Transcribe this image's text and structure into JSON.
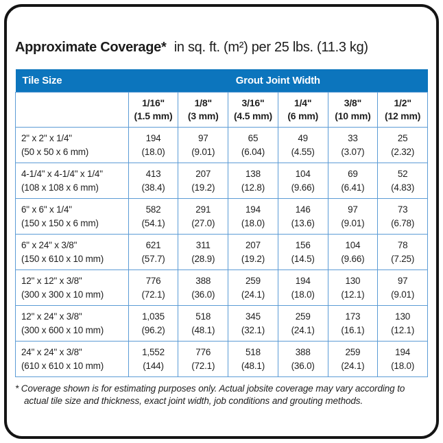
{
  "title": {
    "bold": "Approximate Coverage*",
    "rest": "in sq. ft. (m²) per 25 lbs. (11.3 kg)"
  },
  "table": {
    "header": {
      "tile_size": "Tile Size",
      "grout_joint_width": "Grout Joint Width"
    },
    "columns": [
      {
        "line1": "1/16\"",
        "line2": "(1.5 mm)"
      },
      {
        "line1": "1/8\"",
        "line2": "(3 mm)"
      },
      {
        "line1": "3/16\"",
        "line2": "(4.5 mm)"
      },
      {
        "line1": "1/4\"",
        "line2": "(6 mm)"
      },
      {
        "line1": "3/8\"",
        "line2": "(10 mm)"
      },
      {
        "line1": "1/2\"",
        "line2": "(12 mm)"
      }
    ],
    "rows": [
      {
        "tile_line1": "2\" x 2\" x 1/4\"",
        "tile_line2": "(50 x 50 x 6 mm)",
        "cells": [
          [
            "194",
            "(18.0)"
          ],
          [
            "97",
            "(9.01)"
          ],
          [
            "65",
            "(6.04)"
          ],
          [
            "49",
            "(4.55)"
          ],
          [
            "33",
            "(3.07)"
          ],
          [
            "25",
            "(2.32)"
          ]
        ]
      },
      {
        "tile_line1": "4-1/4\" x 4-1/4\" x 1/4\"",
        "tile_line2": "(108 x 108 x 6 mm)",
        "cells": [
          [
            "413",
            "(38.4)"
          ],
          [
            "207",
            "(19.2)"
          ],
          [
            "138",
            "(12.8)"
          ],
          [
            "104",
            "(9.66)"
          ],
          [
            "69",
            "(6.41)"
          ],
          [
            "52",
            "(4.83)"
          ]
        ]
      },
      {
        "tile_line1": "6\" x 6\" x 1/4\"",
        "tile_line2": "(150 x 150 x 6 mm)",
        "cells": [
          [
            "582",
            "(54.1)"
          ],
          [
            "291",
            "(27.0)"
          ],
          [
            "194",
            "(18.0)"
          ],
          [
            "146",
            "(13.6)"
          ],
          [
            "97",
            "(9.01)"
          ],
          [
            "73",
            "(6.78)"
          ]
        ]
      },
      {
        "tile_line1": "6\" x 24\" x 3/8\"",
        "tile_line2": "(150 x 610 x 10 mm)",
        "cells": [
          [
            "621",
            "(57.7)"
          ],
          [
            "311",
            "(28.9)"
          ],
          [
            "207",
            "(19.2)"
          ],
          [
            "156",
            "(14.5)"
          ],
          [
            "104",
            "(9.66)"
          ],
          [
            "78",
            "(7.25)"
          ]
        ]
      },
      {
        "tile_line1": "12\" x 12\" x 3/8\"",
        "tile_line2": "(300 x 300 x 10 mm)",
        "cells": [
          [
            "776",
            "(72.1)"
          ],
          [
            "388",
            "(36.0)"
          ],
          [
            "259",
            "(24.1)"
          ],
          [
            "194",
            "(18.0)"
          ],
          [
            "130",
            "(12.1)"
          ],
          [
            "97",
            "(9.01)"
          ]
        ]
      },
      {
        "tile_line1": "12\" x 24\" x 3/8\"",
        "tile_line2": "(300 x 600 x 10 mm)",
        "cells": [
          [
            "1,035",
            "(96.2)"
          ],
          [
            "518",
            "(48.1)"
          ],
          [
            "345",
            "(32.1)"
          ],
          [
            "259",
            "(24.1)"
          ],
          [
            "173",
            "(16.1)"
          ],
          [
            "130",
            "(12.1)"
          ]
        ]
      },
      {
        "tile_line1": "24\" x 24\" x 3/8\"",
        "tile_line2": "(610 x 610 x 10 mm)",
        "cells": [
          [
            "1,552",
            "(144)"
          ],
          [
            "776",
            "(72.1)"
          ],
          [
            "518",
            "(48.1)"
          ],
          [
            "388",
            "(36.0)"
          ],
          [
            "259",
            "(24.1)"
          ],
          [
            "194",
            "(18.0)"
          ]
        ]
      }
    ]
  },
  "footnote": "* Coverage shown is for estimating purposes only. Actual jobsite coverage may vary according to actual tile size and thickness, exact joint width, job conditions and grouting methods.",
  "colors": {
    "header_blue": "#0C75BD",
    "cell_border_blue": "#5B9BD5",
    "card_border": "#141414"
  }
}
